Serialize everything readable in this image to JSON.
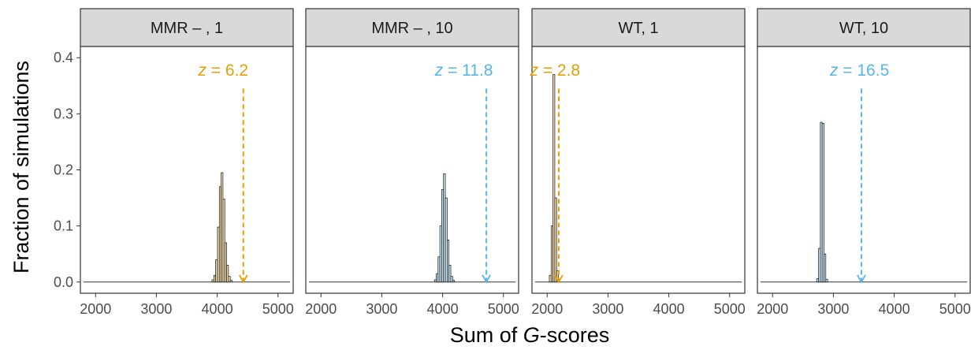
{
  "chart_data": {
    "type": "bar",
    "xlabel": "Sum of G-scores",
    "xlabel_parts": {
      "prefix": "Sum of ",
      "italic": "G",
      "suffix": "-scores"
    },
    "ylabel": "Fraction of simulations",
    "xlim": [
      1750,
      5250
    ],
    "ylim": [
      -0.02,
      0.42
    ],
    "xticks": [
      2000,
      3000,
      4000,
      5000
    ],
    "yticks": [
      0.0,
      0.1,
      0.2,
      0.3,
      0.4
    ],
    "ytick_labels": [
      "0.0",
      "0.1",
      "0.2",
      "0.3",
      "0.4"
    ],
    "baseline": [
      1800,
      5200
    ],
    "grid": false,
    "colors": {
      "orange": "#E69F00",
      "blue": "#56B4E9",
      "orange_fill": "#F2DDB0",
      "blue_fill": "#CBE6F5",
      "strip_bg": "#D9D9D9"
    },
    "panels": [
      {
        "strip_label": "MMR – , 1",
        "color": "orange",
        "bins": [
          {
            "x": 3930,
            "y": 0.004
          },
          {
            "x": 3960,
            "y": 0.012
          },
          {
            "x": 3990,
            "y": 0.04
          },
          {
            "x": 4020,
            "y": 0.098
          },
          {
            "x": 4050,
            "y": 0.17
          },
          {
            "x": 4080,
            "y": 0.195
          },
          {
            "x": 4110,
            "y": 0.148
          },
          {
            "x": 4140,
            "y": 0.07
          },
          {
            "x": 4170,
            "y": 0.03
          },
          {
            "x": 4200,
            "y": 0.01
          },
          {
            "x": 4230,
            "y": 0.003
          }
        ],
        "bin_width": 30,
        "observed_x": 4430,
        "annotation": {
          "prefix": "z",
          "text": " = 6.2",
          "x": 4100,
          "y": 0.378
        }
      },
      {
        "strip_label": "MMR – , 10",
        "color": "blue",
        "bins": [
          {
            "x": 3880,
            "y": 0.004
          },
          {
            "x": 3910,
            "y": 0.015
          },
          {
            "x": 3940,
            "y": 0.045
          },
          {
            "x": 3970,
            "y": 0.1
          },
          {
            "x": 4000,
            "y": 0.165
          },
          {
            "x": 4030,
            "y": 0.193
          },
          {
            "x": 4060,
            "y": 0.15
          },
          {
            "x": 4090,
            "y": 0.075
          },
          {
            "x": 4120,
            "y": 0.03
          },
          {
            "x": 4150,
            "y": 0.01
          },
          {
            "x": 4180,
            "y": 0.003
          }
        ],
        "bin_width": 30,
        "observed_x": 4720,
        "annotation": {
          "prefix": "z",
          "text": " = 11.8",
          "x": 4350,
          "y": 0.378
        }
      },
      {
        "strip_label": "WT, 1",
        "color": "orange",
        "bins": [
          {
            "x": 2050,
            "y": 0.012
          },
          {
            "x": 2080,
            "y": 0.1
          },
          {
            "x": 2110,
            "y": 0.37
          },
          {
            "x": 2140,
            "y": 0.15
          },
          {
            "x": 2170,
            "y": 0.02
          }
        ],
        "bin_width": 30,
        "observed_x": 2190,
        "annotation": {
          "prefix": "z",
          "text": " = 2.8",
          "x": 2130,
          "y": 0.378
        }
      },
      {
        "strip_label": "WT, 10",
        "color": "blue",
        "bins": [
          {
            "x": 2740,
            "y": 0.006
          },
          {
            "x": 2770,
            "y": 0.06
          },
          {
            "x": 2800,
            "y": 0.285
          },
          {
            "x": 2830,
            "y": 0.283
          },
          {
            "x": 2860,
            "y": 0.05
          },
          {
            "x": 2890,
            "y": 0.005
          }
        ],
        "bin_width": 30,
        "observed_x": 3460,
        "annotation": {
          "prefix": "z",
          "text": " = 16.5",
          "x": 3430,
          "y": 0.378
        }
      }
    ]
  }
}
